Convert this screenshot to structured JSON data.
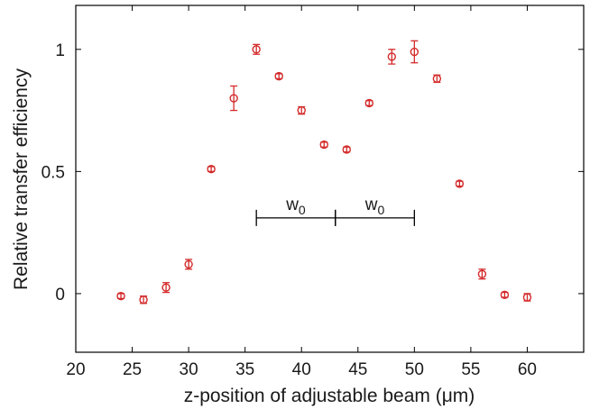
{
  "chart_data": {
    "type": "scatter",
    "title": "",
    "xlabel": "z-position of adjustable beam (μm)",
    "ylabel": "Relative transfer efficiency",
    "xlim": [
      20,
      65
    ],
    "ylim": [
      -0.24,
      1.18
    ],
    "xticks": [
      20,
      25,
      30,
      35,
      40,
      45,
      50,
      55,
      60
    ],
    "yticks": [
      0,
      0.5,
      1
    ],
    "xtick_labels": [
      "20",
      "25",
      "30",
      "35",
      "40",
      "45",
      "50",
      "55",
      "60"
    ],
    "ytick_labels": [
      "0",
      "0.5",
      "1"
    ],
    "grid": false,
    "marker": "open-circle",
    "color": "#d42a2a",
    "points": [
      {
        "x": 24,
        "y": -0.01,
        "err": 0.01
      },
      {
        "x": 26,
        "y": -0.025,
        "err": 0.015
      },
      {
        "x": 28,
        "y": 0.025,
        "err": 0.02
      },
      {
        "x": 30,
        "y": 0.12,
        "err": 0.02
      },
      {
        "x": 32,
        "y": 0.51,
        "err": 0.01
      },
      {
        "x": 34,
        "y": 0.8,
        "err": 0.05
      },
      {
        "x": 36,
        "y": 1.0,
        "err": 0.02
      },
      {
        "x": 38,
        "y": 0.89,
        "err": 0.01
      },
      {
        "x": 40,
        "y": 0.75,
        "err": 0.015
      },
      {
        "x": 42,
        "y": 0.61,
        "err": 0.01
      },
      {
        "x": 44,
        "y": 0.59,
        "err": 0.01
      },
      {
        "x": 46,
        "y": 0.78,
        "err": 0.01
      },
      {
        "x": 48,
        "y": 0.97,
        "err": 0.03
      },
      {
        "x": 50,
        "y": 0.99,
        "err": 0.045
      },
      {
        "x": 52,
        "y": 0.88,
        "err": 0.015
      },
      {
        "x": 54,
        "y": 0.45,
        "err": 0.01
      },
      {
        "x": 56,
        "y": 0.08,
        "err": 0.02
      },
      {
        "x": 58,
        "y": -0.005,
        "err": 0.01
      },
      {
        "x": 60,
        "y": -0.015,
        "err": 0.015
      }
    ],
    "annotations": [
      {
        "label_main": "w",
        "label_sub": "0",
        "x_start": 36,
        "x_end": 43,
        "y": 0.31
      },
      {
        "label_main": "w",
        "label_sub": "0",
        "x_start": 43,
        "x_end": 50,
        "y": 0.31
      }
    ]
  }
}
